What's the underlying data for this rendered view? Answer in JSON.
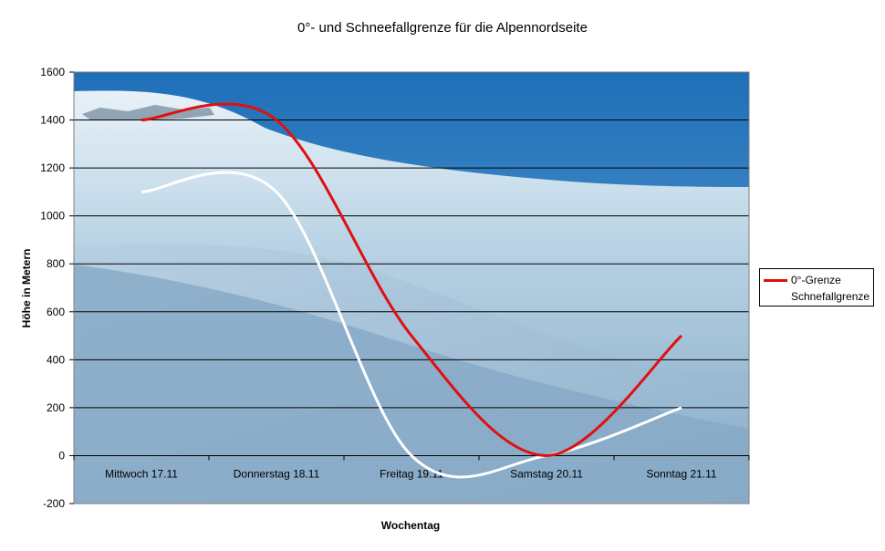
{
  "chart_data": {
    "type": "line",
    "title": "0°- und Schneefallgrenze für die Alpennordseite",
    "xlabel": "Wochentag",
    "ylabel": "Höhe in Metern",
    "categories": [
      "Mittwoch 17.11",
      "Donnerstag 18.11",
      "Freitag 19.11",
      "Samstag 20.11",
      "Sonntag 21.11"
    ],
    "ylim": [
      -200,
      1600
    ],
    "yticks": [
      "1600",
      "1400",
      "1200",
      "1000",
      "800",
      "600",
      "400",
      "200",
      "0",
      "-200"
    ],
    "ytick_values": [
      1600,
      1400,
      1200,
      1000,
      800,
      600,
      400,
      200,
      0,
      -200
    ],
    "grid": true,
    "legend_position": "right",
    "series": [
      {
        "name": "0°-Grenze",
        "color": "#e01010",
        "values": [
          1400,
          1400,
          500,
          0,
          500
        ]
      },
      {
        "name": "Schnefallgrenze",
        "color": "#ffffff",
        "values": [
          1100,
          1100,
          0,
          0,
          200
        ]
      }
    ]
  }
}
